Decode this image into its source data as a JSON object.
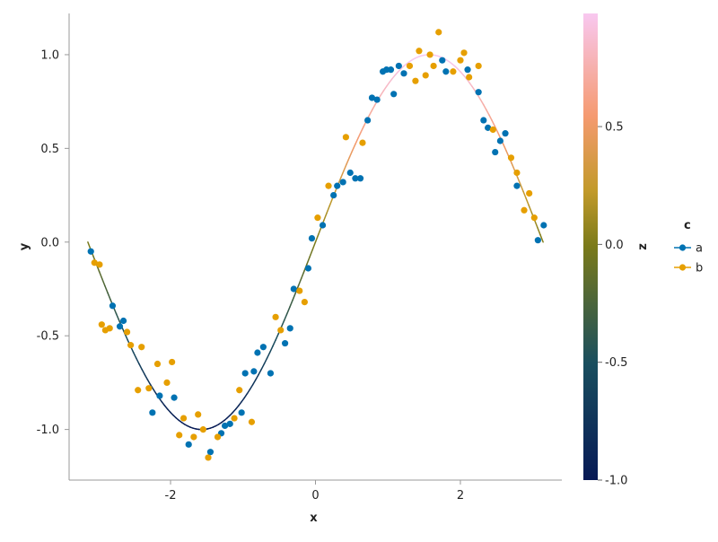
{
  "chart_data": {
    "type": "scatter",
    "xlabel": "x",
    "ylabel": "y",
    "xlim": [
      -3.4,
      3.4
    ],
    "ylim": [
      -1.27,
      1.22
    ],
    "x_ticks": [
      -2,
      0,
      2
    ],
    "x_tick_labels": [
      "-2",
      "0",
      "2"
    ],
    "y_ticks": [
      -1.0,
      -0.5,
      0.0,
      0.5,
      1.0
    ],
    "y_tick_labels": [
      "-1.0",
      "-0.5",
      "0.0",
      "0.5",
      "1.0"
    ],
    "grid": false,
    "colorbar": {
      "label": "z",
      "range": [
        -1.0,
        0.98
      ],
      "ticks": [
        -1.0,
        -0.5,
        0.0,
        0.5
      ],
      "tick_labels": [
        "-1.0",
        "-0.5",
        "0.0",
        "0.5"
      ]
    },
    "legend": {
      "title": "c",
      "placement": "right",
      "entries": [
        {
          "label": "a",
          "color": "#0072b2"
        },
        {
          "label": "b",
          "color": "#e69f00"
        }
      ]
    },
    "curve": {
      "function": "sin",
      "x_range": [
        -3.1416,
        3.1416
      ]
    },
    "series": [
      {
        "name": "a",
        "color": "#0072b2",
        "points": [
          [
            -3.1,
            -0.05
          ],
          [
            -2.8,
            -0.34
          ],
          [
            -2.7,
            -0.45
          ],
          [
            -2.65,
            -0.42
          ],
          [
            -2.25,
            -0.91
          ],
          [
            -2.15,
            -0.82
          ],
          [
            -1.95,
            -0.83
          ],
          [
            -1.75,
            -1.08
          ],
          [
            -1.45,
            -1.12
          ],
          [
            -1.3,
            -1.02
          ],
          [
            -1.25,
            -0.98
          ],
          [
            -1.18,
            -0.97
          ],
          [
            -1.02,
            -0.91
          ],
          [
            -0.97,
            -0.7
          ],
          [
            -0.85,
            -0.69
          ],
          [
            -0.8,
            -0.59
          ],
          [
            -0.72,
            -0.56
          ],
          [
            -0.62,
            -0.7
          ],
          [
            -0.42,
            -0.54
          ],
          [
            -0.35,
            -0.46
          ],
          [
            -0.3,
            -0.25
          ],
          [
            -0.1,
            -0.14
          ],
          [
            -0.05,
            0.02
          ],
          [
            0.1,
            0.09
          ],
          [
            0.25,
            0.25
          ],
          [
            0.3,
            0.3
          ],
          [
            0.38,
            0.32
          ],
          [
            0.48,
            0.37
          ],
          [
            0.55,
            0.34
          ],
          [
            0.62,
            0.34
          ],
          [
            0.72,
            0.65
          ],
          [
            0.78,
            0.77
          ],
          [
            0.85,
            0.76
          ],
          [
            0.93,
            0.91
          ],
          [
            0.98,
            0.92
          ],
          [
            1.04,
            0.92
          ],
          [
            1.08,
            0.79
          ],
          [
            1.15,
            0.94
          ],
          [
            1.22,
            0.9
          ],
          [
            1.75,
            0.97
          ],
          [
            1.8,
            0.91
          ],
          [
            2.1,
            0.92
          ],
          [
            2.25,
            0.8
          ],
          [
            2.32,
            0.65
          ],
          [
            2.38,
            0.61
          ],
          [
            2.48,
            0.48
          ],
          [
            2.55,
            0.54
          ],
          [
            2.62,
            0.58
          ],
          [
            2.78,
            0.3
          ],
          [
            3.07,
            0.01
          ],
          [
            3.15,
            0.09
          ]
        ]
      },
      {
        "name": "b",
        "color": "#e69f00",
        "points": [
          [
            -3.05,
            -0.11
          ],
          [
            -2.98,
            -0.12
          ],
          [
            -2.95,
            -0.44
          ],
          [
            -2.9,
            -0.47
          ],
          [
            -2.84,
            -0.46
          ],
          [
            -2.6,
            -0.48
          ],
          [
            -2.55,
            -0.55
          ],
          [
            -2.45,
            -0.79
          ],
          [
            -2.4,
            -0.56
          ],
          [
            -2.3,
            -0.78
          ],
          [
            -2.18,
            -0.65
          ],
          [
            -2.05,
            -0.75
          ],
          [
            -1.98,
            -0.64
          ],
          [
            -1.88,
            -1.03
          ],
          [
            -1.82,
            -0.94
          ],
          [
            -1.68,
            -1.04
          ],
          [
            -1.62,
            -0.92
          ],
          [
            -1.55,
            -1.0
          ],
          [
            -1.48,
            -1.15
          ],
          [
            -1.35,
            -1.04
          ],
          [
            -1.12,
            -0.94
          ],
          [
            -1.05,
            -0.79
          ],
          [
            -0.88,
            -0.96
          ],
          [
            -0.55,
            -0.4
          ],
          [
            -0.48,
            -0.47
          ],
          [
            -0.22,
            -0.26
          ],
          [
            -0.15,
            -0.32
          ],
          [
            0.03,
            0.13
          ],
          [
            0.18,
            0.3
          ],
          [
            0.42,
            0.56
          ],
          [
            0.65,
            0.53
          ],
          [
            1.3,
            0.94
          ],
          [
            1.38,
            0.86
          ],
          [
            1.43,
            1.02
          ],
          [
            1.52,
            0.89
          ],
          [
            1.58,
            1.0
          ],
          [
            1.63,
            0.94
          ],
          [
            1.7,
            1.12
          ],
          [
            1.9,
            0.91
          ],
          [
            2.0,
            0.97
          ],
          [
            2.05,
            1.01
          ],
          [
            2.12,
            0.88
          ],
          [
            2.25,
            0.94
          ],
          [
            2.45,
            0.6
          ],
          [
            2.7,
            0.45
          ],
          [
            2.78,
            0.37
          ],
          [
            2.88,
            0.17
          ],
          [
            2.95,
            0.26
          ],
          [
            3.02,
            0.13
          ]
        ]
      }
    ]
  }
}
